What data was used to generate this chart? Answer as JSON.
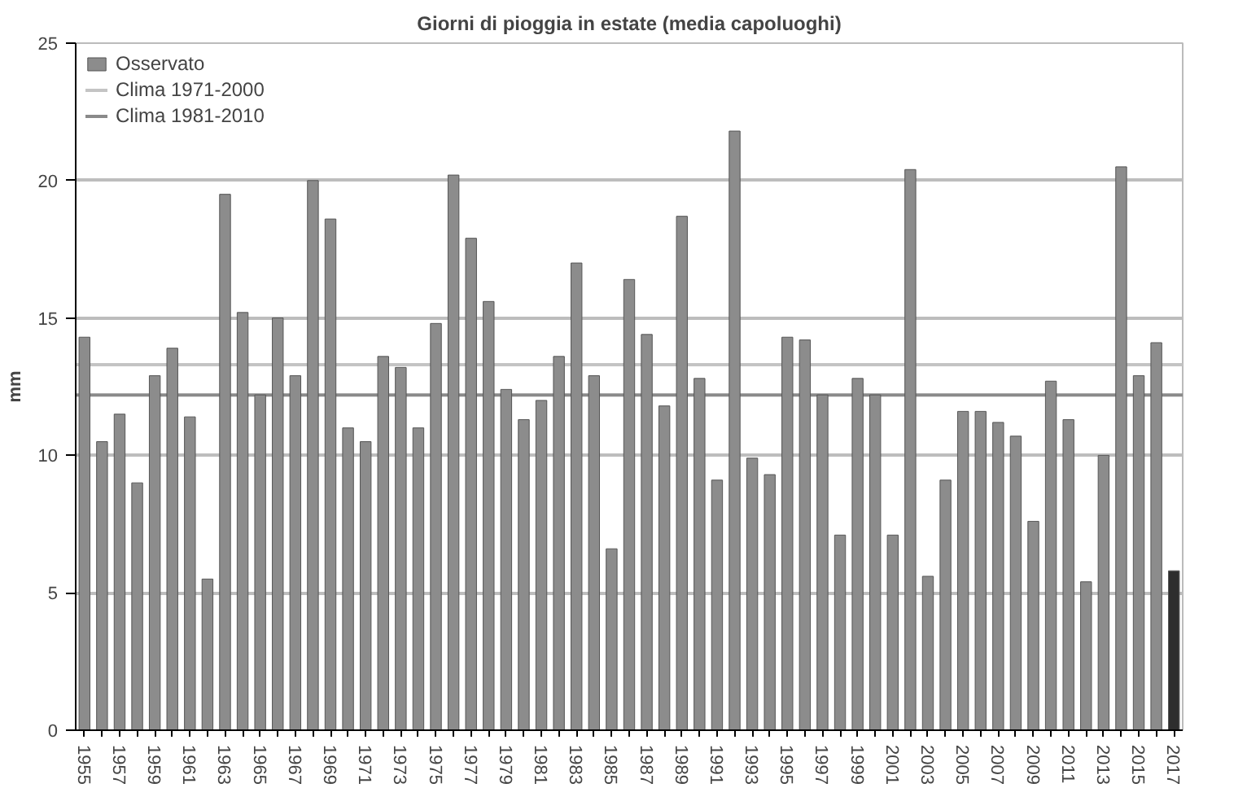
{
  "chart_data": {
    "type": "bar",
    "title": "Giorni di pioggia in estate (media capoluoghi)",
    "ylabel": "mm",
    "categories": [
      "1955",
      null,
      "1957",
      null,
      "1959",
      null,
      "1961",
      null,
      "1963",
      null,
      "1965",
      null,
      "1967",
      null,
      "1969",
      null,
      "1971",
      null,
      "1973",
      null,
      "1975",
      null,
      "1977",
      null,
      "1979",
      null,
      "1981",
      null,
      "1983",
      null,
      "1985",
      null,
      "1987",
      null,
      "1989",
      null,
      "1991",
      null,
      "1993",
      null,
      "1995",
      null,
      "1997",
      null,
      "1999",
      null,
      "2001",
      null,
      "2003",
      null,
      "2005",
      null,
      "2007",
      null,
      "2009",
      null,
      "2011",
      null,
      "2013",
      null,
      "2015",
      null,
      "2017"
    ],
    "series": [
      {
        "name": "Osservato",
        "color": "#8c8c8c",
        "values": [
          14.3,
          10.5,
          11.5,
          9.0,
          12.9,
          13.9,
          11.4,
          5.5,
          19.5,
          15.2,
          12.2,
          15.0,
          12.9,
          20.0,
          18.6,
          11.0,
          10.5,
          13.6,
          13.2,
          11.0,
          14.8,
          20.2,
          17.9,
          15.6,
          12.4,
          11.3,
          12.0,
          13.6,
          17.0,
          12.9,
          6.6,
          16.4,
          14.4,
          11.8,
          18.7,
          12.8,
          9.1,
          21.8,
          9.9,
          9.3,
          14.3,
          14.2,
          12.2,
          7.1,
          12.8,
          12.2,
          7.1,
          20.4,
          5.6,
          9.1,
          11.6,
          11.6,
          11.2,
          10.7,
          7.6,
          12.7,
          11.3,
          5.4,
          10.0,
          20.5,
          12.9,
          14.1,
          5.8
        ],
        "colors": [
          "#8c8c8c",
          "#8c8c8c",
          "#8c8c8c",
          "#8c8c8c",
          "#8c8c8c",
          "#8c8c8c",
          "#8c8c8c",
          "#8c8c8c",
          "#8c8c8c",
          "#8c8c8c",
          "#8c8c8c",
          "#8c8c8c",
          "#8c8c8c",
          "#8c8c8c",
          "#8c8c8c",
          "#8c8c8c",
          "#8c8c8c",
          "#8c8c8c",
          "#8c8c8c",
          "#8c8c8c",
          "#8c8c8c",
          "#8c8c8c",
          "#8c8c8c",
          "#8c8c8c",
          "#8c8c8c",
          "#8c8c8c",
          "#8c8c8c",
          "#8c8c8c",
          "#8c8c8c",
          "#8c8c8c",
          "#8c8c8c",
          "#8c8c8c",
          "#8c8c8c",
          "#8c8c8c",
          "#8c8c8c",
          "#8c8c8c",
          "#8c8c8c",
          "#8c8c8c",
          "#8c8c8c",
          "#8c8c8c",
          "#8c8c8c",
          "#8c8c8c",
          "#8c8c8c",
          "#8c8c8c",
          "#8c8c8c",
          "#8c8c8c",
          "#8c8c8c",
          "#8c8c8c",
          "#8c8c8c",
          "#8c8c8c",
          "#8c8c8c",
          "#8c8c8c",
          "#8c8c8c",
          "#8c8c8c",
          "#8c8c8c",
          "#8c8c8c",
          "#8c8c8c",
          "#8c8c8c",
          "#8c8c8c",
          "#8c8c8c",
          "#8c8c8c",
          "#8c8c8c",
          "#2e2e2e"
        ]
      }
    ],
    "ref_lines": [
      {
        "axis": "y",
        "value": 13.3,
        "label": "Clima 1971-2000",
        "color": "#c4c4c4"
      },
      {
        "axis": "y",
        "value": 12.2,
        "label": "Clima 1981-2010",
        "color": "#8a8a8a"
      }
    ],
    "ylim": [
      0,
      25
    ],
    "yticks": [
      0,
      5,
      10,
      15,
      20,
      25
    ],
    "grid": "y",
    "legend": "top left"
  }
}
